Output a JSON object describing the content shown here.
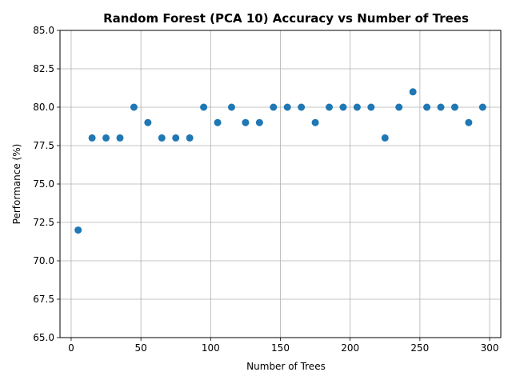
{
  "chart_data": {
    "type": "scatter",
    "title": "Random Forest (PCA 10) Accuracy vs Number of Trees",
    "xlabel": "Number of Trees",
    "ylabel": "Performance (%)",
    "xlim": [
      -8,
      308
    ],
    "ylim": [
      65,
      85
    ],
    "xticks": [
      0,
      50,
      100,
      150,
      200,
      250,
      300
    ],
    "yticks": [
      65.0,
      67.5,
      70.0,
      72.5,
      75.0,
      77.5,
      80.0,
      82.5,
      85.0
    ],
    "xtick_labels": [
      "0",
      "50",
      "100",
      "150",
      "200",
      "250",
      "300"
    ],
    "ytick_labels": [
      "65.0",
      "67.5",
      "70.0",
      "72.5",
      "75.0",
      "77.5",
      "80.0",
      "82.5",
      "85.0"
    ],
    "grid": true,
    "marker_color": "#1f77b4",
    "x": [
      5,
      15,
      25,
      35,
      45,
      55,
      65,
      75,
      85,
      95,
      105,
      115,
      125,
      135,
      145,
      155,
      165,
      175,
      185,
      195,
      205,
      215,
      225,
      235,
      245,
      255,
      265,
      275,
      285,
      295
    ],
    "y": [
      72,
      78,
      78,
      78,
      80,
      79,
      78,
      78,
      78,
      80,
      79,
      80,
      79,
      79,
      80,
      80,
      80,
      79,
      80,
      80,
      80,
      80,
      78,
      80,
      81,
      80,
      80,
      80,
      79,
      80
    ]
  }
}
